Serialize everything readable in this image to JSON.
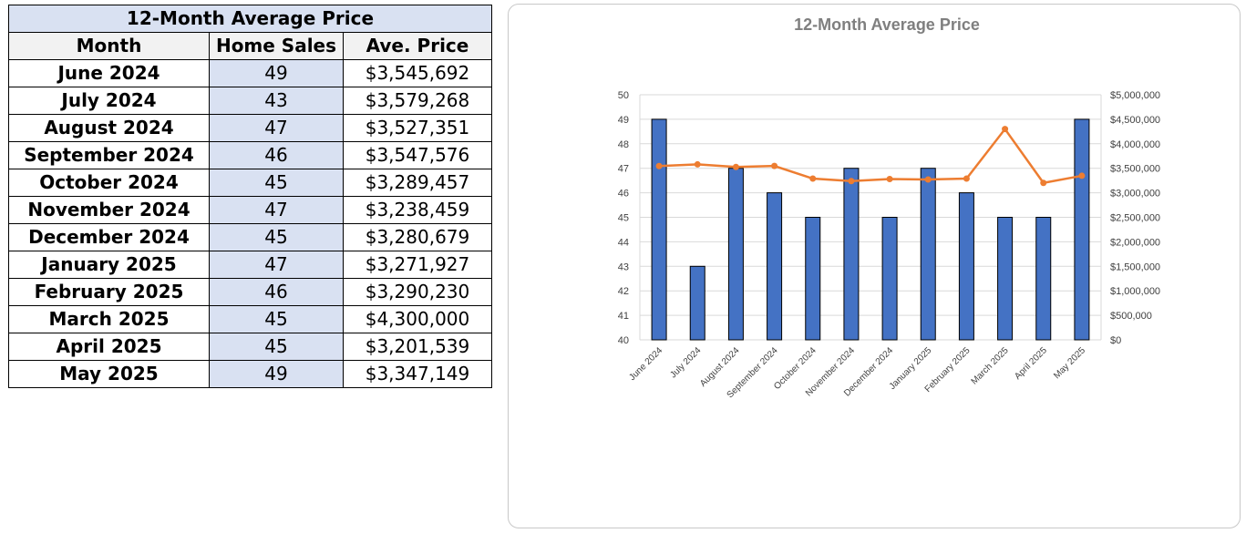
{
  "table": {
    "title": "12-Month Average Price",
    "headers": [
      "Month",
      "Home Sales",
      "Ave. Price"
    ],
    "rows": [
      {
        "month": "June 2024",
        "sales": "49",
        "price": "$3,545,692"
      },
      {
        "month": "July 2024",
        "sales": "43",
        "price": "$3,579,268"
      },
      {
        "month": "August 2024",
        "sales": "47",
        "price": "$3,527,351"
      },
      {
        "month": "September 2024",
        "sales": "46",
        "price": "$3,547,576"
      },
      {
        "month": "October 2024",
        "sales": "45",
        "price": "$3,289,457"
      },
      {
        "month": "November 2024",
        "sales": "47",
        "price": "$3,238,459"
      },
      {
        "month": "December 2024",
        "sales": "45",
        "price": "$3,280,679"
      },
      {
        "month": "January 2025",
        "sales": "47",
        "price": "$3,271,927"
      },
      {
        "month": "February 2025",
        "sales": "46",
        "price": "$3,290,230"
      },
      {
        "month": "March 2025",
        "sales": "45",
        "price": "$4,300,000"
      },
      {
        "month": "April 2025",
        "sales": "45",
        "price": "$3,201,539"
      },
      {
        "month": "May 2025",
        "sales": "49",
        "price": "$3,347,149"
      }
    ]
  },
  "chart_data": {
    "type": "bar",
    "title": "12-Month Average Price",
    "categories": [
      "June 2024",
      "July 2024",
      "August 2024",
      "September 2024",
      "October 2024",
      "November 2024",
      "December 2024",
      "January 2025",
      "February 2025",
      "March 2025",
      "April 2025",
      "May 2025"
    ],
    "series": [
      {
        "type": "bar",
        "axis": "left",
        "values": [
          49,
          43,
          47,
          46,
          45,
          47,
          45,
          47,
          46,
          45,
          45,
          49
        ],
        "color": "#4472c4"
      },
      {
        "type": "line",
        "axis": "right",
        "values": [
          3545692,
          3579268,
          3527351,
          3547576,
          3289457,
          3238459,
          3280679,
          3271927,
          3290230,
          4300000,
          3201539,
          3347149
        ],
        "color": "#ed7d31"
      }
    ],
    "ylim_left": [
      40,
      50
    ],
    "ylim_right": [
      0,
      5000000
    ],
    "yticks_left": [
      "40",
      "41",
      "42",
      "43",
      "44",
      "45",
      "46",
      "47",
      "48",
      "49",
      "50"
    ],
    "yticks_right": [
      "$0",
      "$500,000",
      "$1,000,000",
      "$1,500,000",
      "$2,000,000",
      "$2,500,000",
      "$3,000,000",
      "$3,500,000",
      "$4,000,000",
      "$4,500,000",
      "$5,000,000"
    ],
    "grid": true,
    "legend": "none"
  }
}
